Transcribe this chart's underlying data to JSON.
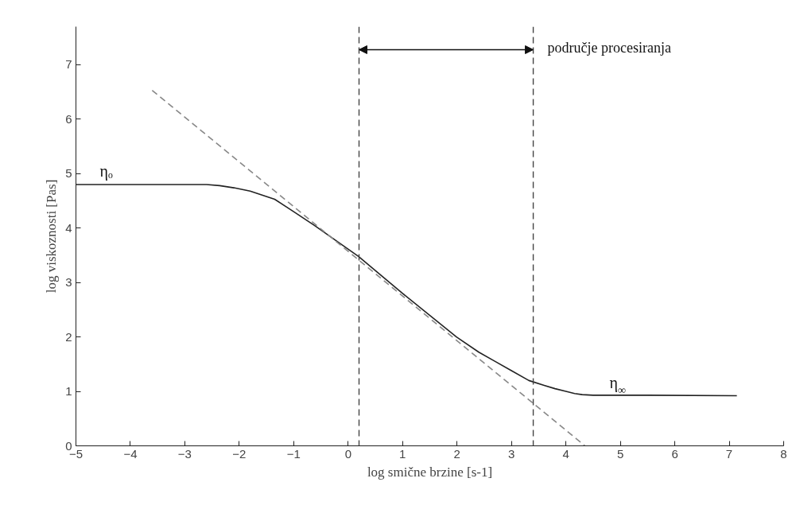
{
  "chart_data": {
    "type": "line",
    "xlabel": "log smične brzine [s-1]",
    "ylabel": "log viskoznosti [Pas]",
    "xlim": [
      -5,
      8
    ],
    "ylim": [
      0,
      7.7
    ],
    "xticks": [
      -5,
      -4,
      -3,
      -2,
      -1,
      0,
      1,
      2,
      3,
      4,
      5,
      6,
      7,
      8
    ],
    "yticks": [
      0,
      1,
      2,
      3,
      4,
      5,
      6,
      7
    ],
    "grid": false,
    "series": [
      {
        "color": "#222222",
        "line_style": "solid",
        "x": [
          -5,
          -3,
          -2.6,
          -2.36,
          -2.1,
          -1.8,
          -1.35,
          -1.0,
          -0.62,
          0.19,
          1.0,
          1.99,
          2.4,
          2.7,
          3.0,
          3.32,
          3.6,
          3.8,
          4.0,
          4.16,
          4.3,
          4.5,
          5.5,
          7.14
        ],
        "values": [
          4.8,
          4.8,
          4.8,
          4.78,
          4.74,
          4.68,
          4.53,
          4.3,
          4.05,
          3.48,
          2.8,
          2.0,
          1.72,
          1.55,
          1.38,
          1.2,
          1.11,
          1.05,
          1.0,
          0.96,
          0.94,
          0.93,
          0.93,
          0.92
        ]
      },
      {
        "color": "#888888",
        "line_style": "dashed",
        "x": [
          -3.6,
          4.35
        ],
        "values": [
          6.53,
          0
        ]
      }
    ],
    "ref_lines": [
      {
        "axis": "x",
        "value": 0.2,
        "label": null,
        "line_style": "dashed",
        "color": "#444444"
      },
      {
        "axis": "x",
        "value": 3.4,
        "label": null,
        "line_style": "dashed",
        "color": "#444444"
      }
    ],
    "annotations": [
      "ηₒ",
      "η$_{∞}$",
      "područje procesiranja"
    ]
  }
}
